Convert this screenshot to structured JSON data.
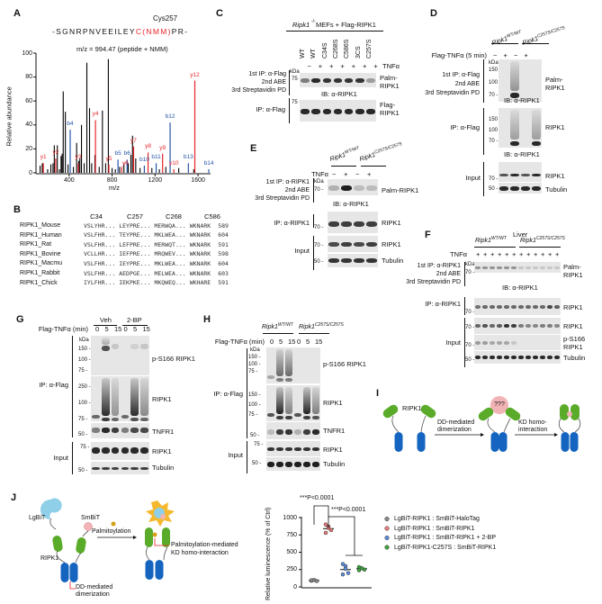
{
  "panels": {
    "A": {
      "label": "A",
      "cys": "Cys257",
      "sequence_pre": "-SGNRPNVEEILEY",
      "sequence_c": "C(NMM)",
      "sequence_post": "PR-",
      "mz_label": "m/z = 994.47 (peptide + NMM)",
      "ylabel": "Relative abundance",
      "xlabel": "m/z"
    },
    "B": {
      "label": "B",
      "columns": [
        "C34",
        "C257",
        "C268",
        "C586"
      ],
      "rows": [
        {
          "name": "RIPK1_Mouse",
          "seq": [
            "VSL",
            "YHR...",
            "LEY",
            "PRE...",
            "MER",
            "WQA...",
            "WKN",
            "ARK"
          ],
          "len": "589"
        },
        {
          "name": "RIPK1_Human",
          "seq": [
            "VSL",
            "FHR...",
            "TEY",
            "PRE...",
            "MKL",
            "WEA...",
            "WKN",
            "ARK"
          ],
          "len": "604"
        },
        {
          "name": "RIPK1_Rat",
          "seq": [
            "VSL",
            "FHR...",
            "LEF",
            "PRE...",
            "MER",
            "WQT...",
            "WKN",
            "ARK"
          ],
          "len": "591"
        },
        {
          "name": "RIPK1_Bovine",
          "seq": [
            "VCL",
            "LHR...",
            "IEF",
            "PRE...",
            "MRQ",
            "WEV...",
            "WKN",
            "ARK"
          ],
          "len": "598"
        },
        {
          "name": "RIPK1_Macmu",
          "seq": [
            "VSL",
            "FHR...",
            "IEY",
            "PRE...",
            "MKL",
            "WEA...",
            "WKN",
            "ARK"
          ],
          "len": "604"
        },
        {
          "name": "RIPK1_Rabbit",
          "seq": [
            "VSL",
            "FHR...",
            "AED",
            "PGE...",
            "MEL",
            "WEA...",
            "WKN",
            "ARK"
          ],
          "len": "603"
        },
        {
          "name": "RIPK1_Chick",
          "seq": [
            "IYL",
            "FHR...",
            "IEK",
            "PKE...",
            "MKQ",
            "WEQ...",
            "WKH",
            "ARE"
          ],
          "len": "591"
        }
      ],
      "cys_letter": "C"
    },
    "C": {
      "label": "C",
      "title_italic": "Ripk1",
      "title_sup": "-/-",
      "title_rest": " MEFs + Flag-RIPK1",
      "lanes": [
        "WT",
        "WT",
        "C34S",
        "C268S",
        "C586S",
        "3CS",
        "C257S"
      ],
      "tnf": [
        "−",
        "+",
        "+",
        "+",
        "+",
        "+",
        "+"
      ],
      "tnf_label": "TNFα",
      "ip1": "1st IP: α-Flag",
      "abe": "2nd ABE",
      "pd": "3rd Streptavidin PD",
      "kda": "kDa",
      "m75": "75 -",
      "m75b": "75 -",
      "palm": "Palm-",
      "palm2": "RIPK1",
      "ib": "IB: α-RIPK1",
      "ip": "IP: α-Flag",
      "flag": "Flag-",
      "flag2": "RIPK1"
    },
    "D": {
      "label": "D",
      "g1": "Ripk1",
      "g1s": "WT/WT",
      "g2": "Ripk1",
      "g2s": "C257S/C257S",
      "treat": "Flag-TNFα (5 min)",
      "signs": [
        "−",
        "+",
        "−",
        "+"
      ],
      "ip1": "1st IP: α-Flag",
      "abe": "2nd ABE",
      "pd": "3rd Streptavidin PD",
      "kda": "kDa",
      "m1": [
        "150 -",
        "100 -",
        "70 -"
      ],
      "palm": "Palm-",
      "palm2": "RIPK1",
      "ib": "IB: α-RIPK1",
      "ip": "IP: α-Flag",
      "m2": [
        "150 -",
        "100 -",
        "70 -"
      ],
      "ripk1": "RIPK1",
      "ib2": "IB: α-RIPK1",
      "input": "Input",
      "m3": "70 -",
      "m4": "50 -",
      "ripk1b": "RIPK1",
      "tub": "Tubulin"
    },
    "E": {
      "label": "E",
      "g1": "Ripk1",
      "g1s": "WT/WT",
      "g2": "Ripk1",
      "g2s": "C257S/C257S",
      "tnf_label": "TNFα",
      "signs": [
        "−",
        "+",
        "−",
        "+"
      ],
      "ip1": "1st IP: α-RIPK1",
      "abe": "2nd ABE",
      "pd": "3rd Streptavidin PD",
      "kda": "kDa",
      "m1": "70 -",
      "palm": "Palm-RIPK1",
      "ib": "IB: α-RIPK1",
      "ip": "IP: α-RIPK1",
      "m2": "70 -",
      "ripk1": "RIPK1",
      "input": "Input",
      "m3": "70 -",
      "m4": "50 -",
      "ripk1b": "RIPK1",
      "tub": "Tubulin"
    },
    "F": {
      "label": "F",
      "tissue": "Liver",
      "g1": "Ripk1",
      "g1s": "WT/WT",
      "g2": "Ripk1",
      "g2s": "C257S/C257S",
      "tnf_label": "TNFα",
      "signs": [
        "+",
        "+",
        "+",
        "+",
        "+",
        "+",
        "+",
        "+",
        "+",
        "+",
        "+",
        "+"
      ],
      "ip1": "1st IP: α-RIPK1",
      "abe": "2nd ABE",
      "pd": "3rd Streptavidin PD",
      "kda": "kDa",
      "m1": "70 -",
      "palm": "Palm-",
      "palm2": "RIPK1",
      "ib": "IB: α-RIPK1",
      "ip": "IP: α-RIPK1",
      "m2": "70 -",
      "ripk1": "RIPK1",
      "input": "Input",
      "m3": "70 -",
      "m4": "70 -",
      "m5": "50 -",
      "ripk1b": "RIPK1",
      "ps": "p-S166",
      "ps2": "RIPK1",
      "tub": "Tubulin"
    },
    "G": {
      "label": "G",
      "veh": "Veh",
      "bp": "2-BP",
      "treat": "Flag-TNFα (min)",
      "times": [
        "0",
        "5",
        "15",
        "0",
        "5",
        "15"
      ],
      "kda": "kDa",
      "m1": [
        "150 -",
        "100 -",
        "75 -"
      ],
      "m2": [
        "250 -",
        "100 -",
        "75 -"
      ],
      "m3": "50 -",
      "m4": "75 -",
      "m5": "50 -",
      "ip": "IP: α-Flag",
      "input": "Input",
      "ps": "p-S166 RIPK1",
      "ripk1": "RIPK1",
      "tnfr1": "TNFR1",
      "ripk1b": "RIPK1",
      "tub": "Tubulin"
    },
    "H": {
      "label": "H",
      "g1": "Ripk1",
      "g1s": "WT/WT",
      "g2": "Ripk1",
      "g2s": "C257S/C257S",
      "treat": "Flag-TNFα (min)",
      "times": [
        "0",
        "5",
        "15",
        "0",
        "5",
        "15"
      ],
      "kda": "kDa",
      "m1": [
        "150 -",
        "100 -",
        "75 -"
      ],
      "m2": [
        "150 -",
        "100 -",
        "75 -"
      ],
      "m3": "50 -",
      "m4": "75 -",
      "m5": "50 -",
      "ip": "IP: α-Flag",
      "input": "Input",
      "ps": "p-S166 RIPK1",
      "ripk1": "RIPK1",
      "tnfr1": "TNFR1",
      "ripk1b": "RIPK1",
      "tub": "Tubulin"
    },
    "I": {
      "label": "I",
      "ripk1": "RIPK1",
      "kd": "KD",
      "dd": "DD",
      "dd_dimer1": "DD-mediated",
      "dd_dimer2": "dimerization",
      "unknown": "???",
      "kd_homo1": "KD homo-",
      "kd_homo2": "interaction"
    },
    "J": {
      "label": "J",
      "lgbit": "LgBiT",
      "smbit": "SmBiT",
      "ripk1": "RIPK1",
      "kd": "KD",
      "dd": "DD",
      "palm": "Palmitoylation",
      "palm_kd1": "Palmitoylation-mediated",
      "palm_kd2": "KD homo-interaction",
      "dd1": "DD-mediated",
      "dd2": "dimerization",
      "p1": "***P<0.0001",
      "p2": "***P<0.0001"
    }
  },
  "colors": {
    "red": "#e8242a",
    "blue": "#2756a8",
    "kd_green": "#5aab2a",
    "dd_blue": "#1565c0",
    "lgbit": "#8fcfe8",
    "smbit": "#f2b3b6",
    "palm_gold": "#d4a017"
  },
  "chart_data": [
    {
      "panel": "A",
      "type": "bar",
      "xlabel": "m/z",
      "ylabel": "Relative abundance",
      "xlim": [
        100,
        1700
      ],
      "ylim": [
        0,
        100
      ],
      "xticks": [
        400,
        800,
        1200,
        1600
      ],
      "yticks": [
        0,
        20,
        40,
        60,
        80,
        100
      ],
      "labeled_peaks": [
        {
          "ion": "y1",
          "mz": 160,
          "abundance": 8,
          "series": "y"
        },
        {
          "ion": "y2",
          "mz": 275,
          "abundance": 12,
          "series": "y"
        },
        {
          "ion": "b4",
          "mz": 410,
          "abundance": 36,
          "series": "b"
        },
        {
          "ion": "y3",
          "mz": 485,
          "abundance": 8,
          "series": "y"
        },
        {
          "ion": "y4",
          "mz": 645,
          "abundance": 44,
          "series": "y"
        },
        {
          "ion": "y5",
          "mz": 770,
          "abundance": 7,
          "series": "y"
        },
        {
          "ion": "b5",
          "mz": 855,
          "abundance": 11,
          "series": "b"
        },
        {
          "ion": "y6",
          "mz": 890,
          "abundance": 5,
          "series": "y"
        },
        {
          "ion": "b6",
          "mz": 940,
          "abundance": 11,
          "series": "b"
        },
        {
          "ion": "y7",
          "mz": 1000,
          "abundance": 22,
          "series": "y"
        },
        {
          "ion": "b10",
          "mz": 1100,
          "abundance": 6,
          "series": "b"
        },
        {
          "ion": "y8",
          "mz": 1135,
          "abundance": 17,
          "series": "y"
        },
        {
          "ion": "b11",
          "mz": 1210,
          "abundance": 8,
          "series": "b"
        },
        {
          "ion": "y9",
          "mz": 1270,
          "abundance": 16,
          "series": "y"
        },
        {
          "ion": "b12",
          "mz": 1340,
          "abundance": 42,
          "series": "b"
        },
        {
          "ion": "y10",
          "mz": 1375,
          "abundance": 3,
          "series": "y"
        },
        {
          "ion": "b13",
          "mz": 1510,
          "abundance": 8,
          "series": "b"
        },
        {
          "ion": "y12",
          "mz": 1570,
          "abundance": 77,
          "series": "y"
        },
        {
          "ion": "b14",
          "mz": 1700,
          "abundance": 3,
          "series": "b"
        }
      ],
      "other_peaks": [
        [
          130,
          6
        ],
        [
          150,
          8
        ],
        [
          200,
          3
        ],
        [
          230,
          7
        ],
        [
          250,
          8
        ],
        [
          262,
          23
        ],
        [
          290,
          23
        ],
        [
          310,
          3
        ],
        [
          325,
          14
        ],
        [
          335,
          16
        ],
        [
          345,
          68
        ],
        [
          365,
          51
        ],
        [
          390,
          7
        ],
        [
          440,
          5
        ],
        [
          470,
          25
        ],
        [
          490,
          10
        ],
        [
          500,
          12
        ],
        [
          515,
          40
        ],
        [
          540,
          8
        ],
        [
          565,
          92
        ],
        [
          590,
          54
        ],
        [
          610,
          8
        ],
        [
          640,
          15
        ],
        [
          680,
          5
        ],
        [
          710,
          52
        ],
        [
          740,
          8
        ],
        [
          765,
          95
        ],
        [
          800,
          4
        ],
        [
          830,
          3
        ],
        [
          870,
          5
        ],
        [
          910,
          8
        ],
        [
          950,
          8
        ],
        [
          975,
          15
        ],
        [
          990,
          31
        ],
        [
          1020,
          12
        ],
        [
          1060,
          4
        ],
        [
          1170,
          4
        ],
        [
          1240,
          3
        ],
        [
          1300,
          5
        ],
        [
          1420,
          4
        ],
        [
          1560,
          3
        ]
      ]
    },
    {
      "panel": "J",
      "type": "scatter",
      "ylabel": "Relative luminescence (% of Ctrl)",
      "ylim": [
        0,
        1000
      ],
      "yticks": [
        0,
        250,
        500,
        750,
        1000
      ],
      "series": [
        {
          "name": "LgBiT-RIPK1 : SmBiT-HaloTag",
          "color": "#888888",
          "values": [
            90,
            100,
            85,
            95
          ],
          "mean": 92
        },
        {
          "name": "LgBiT-RIPK1 : SmBiT-RIPK1",
          "color": "#e87a7a",
          "values": [
            900,
            870,
            820,
            780,
            850
          ],
          "mean": 840
        },
        {
          "name": "LgBiT-RIPK1 : SmBiT-RIPK1 + 2-BP",
          "color": "#5b8ddb",
          "values": [
            330,
            300,
            200,
            180,
            260
          ],
          "mean": 250
        },
        {
          "name": "LgBiT-RIPK1-C257S : SmBiT-RIPK1",
          "color": "#3da33d",
          "values": [
            285,
            270,
            250,
            240
          ],
          "mean": 262
        }
      ]
    }
  ]
}
